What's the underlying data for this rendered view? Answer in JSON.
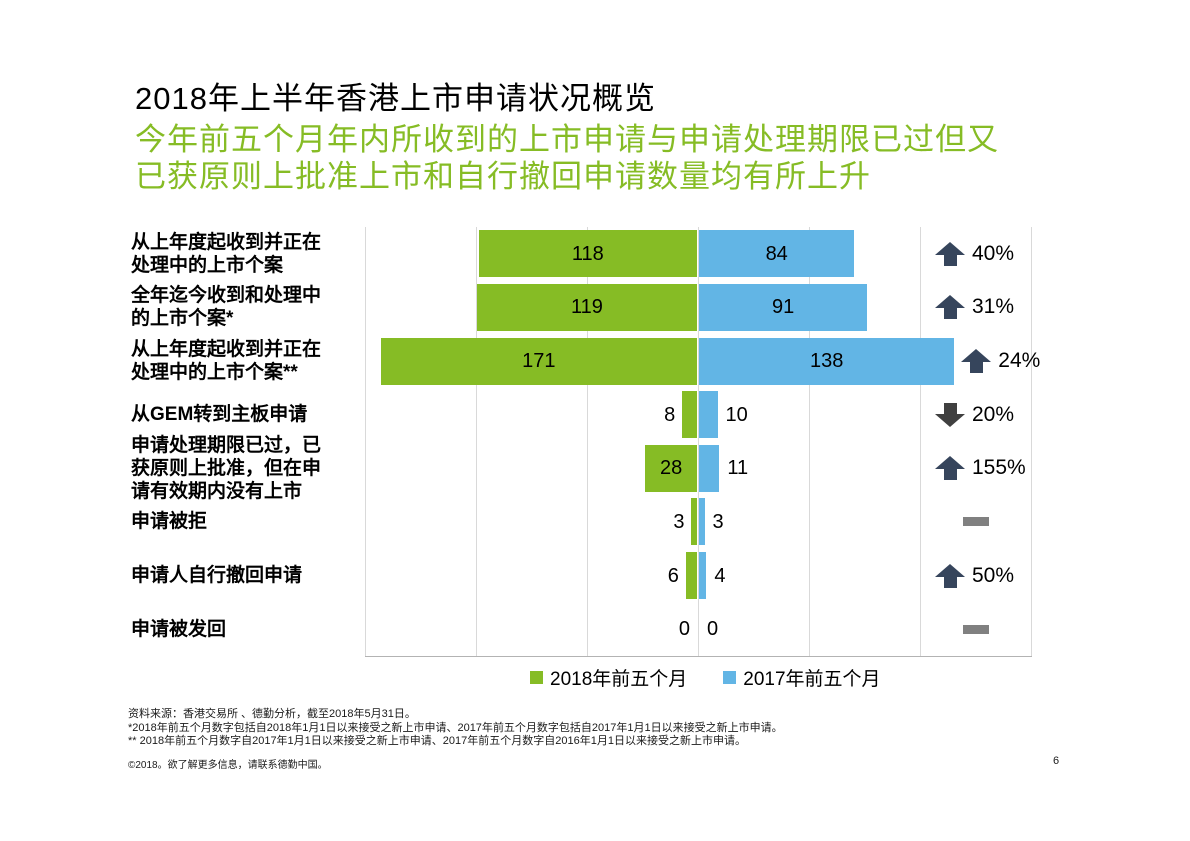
{
  "slide": {
    "title": "2018年上半年香港上市申请状况概览",
    "subtitle_lines": [
      "今年前五个月年内所收到的上市申请与申请处理期限已过但又",
      "已获原则上批准上市和自行撤回申请数量均有所上升"
    ],
    "page_number": "6",
    "copyright": "©2018。欲了解更多信息，请联系德勤中国。"
  },
  "footnotes": [
    "资料来源：香港交易所 、德勤分析，截至2018年5月31日。",
    "*2018年前五个月数字包括自2018年1月1日以来接受之新上市申请、2017年前五个月数字包括自2017年1月1日以来接受之新上市申请。",
    "** 2018年前五个月数字自2017年1月1日以来接受之新上市申请、2017年前五个月数字自2016年1月1日以来接受之新上市申请。"
  ],
  "legend": [
    {
      "label": "2018年前五个月",
      "color": "#86bc25"
    },
    {
      "label": "2017年前五个月",
      "color": "#62b5e5"
    }
  ],
  "colors": {
    "green": "#86bc25",
    "blue": "#62b5e5",
    "up": "#36455c",
    "down": "#404040",
    "flat": "#808080",
    "grid": "#d9d9d9",
    "axis": "#b3b3b3",
    "subtitle": "#86bc25"
  },
  "chart_data": {
    "type": "bar",
    "variant": "tornado-butterfly",
    "orientation": "horizontal-diverging",
    "categories": [
      "从上年度起收到并正在\n处理中的上市个案",
      "全年迄今收到和处理中\n的上市个案*",
      "从上年度起收到并正在\n处理中的上市个案**",
      "从GEM转到主板申请",
      "申请处理期限已过，已\n获原则上批准，但在申\n请有效期内没有上市",
      "申请被拒",
      "申请人自行撤回申请",
      "申请被发回"
    ],
    "series": [
      {
        "name": "2018年前五个月",
        "side": "left",
        "color": "#86bc25",
        "values": [
          118,
          119,
          171,
          8,
          28,
          3,
          6,
          0
        ]
      },
      {
        "name": "2017年前五个月",
        "side": "right",
        "color": "#62b5e5",
        "values": [
          84,
          91,
          138,
          10,
          11,
          3,
          4,
          0
        ]
      }
    ],
    "changes": [
      {
        "direction": "up",
        "value": "40%"
      },
      {
        "direction": "up",
        "value": "31%"
      },
      {
        "direction": "up",
        "value": "24%"
      },
      {
        "direction": "down",
        "value": "20%"
      },
      {
        "direction": "up",
        "value": "155%"
      },
      {
        "direction": "flat",
        "value": ""
      },
      {
        "direction": "up",
        "value": "50%"
      },
      {
        "direction": "flat",
        "value": ""
      }
    ],
    "value_labels_inside": {
      "s2018": [
        true,
        true,
        true,
        false,
        true,
        false,
        false,
        false
      ],
      "s2017": [
        true,
        true,
        true,
        false,
        false,
        false,
        false,
        false
      ]
    },
    "axis": {
      "xlim_per_side": 180,
      "grid_step": 60,
      "grid_visible": true,
      "tick_labels_visible": false
    },
    "legend_position": "bottom"
  }
}
